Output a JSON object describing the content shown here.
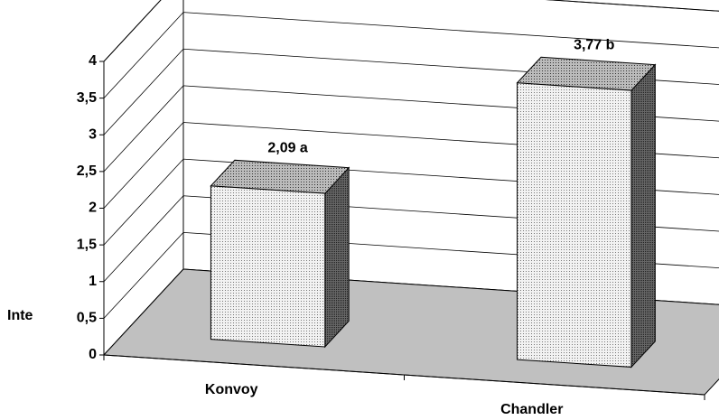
{
  "chart_data": {
    "type": "bar3d",
    "y_label": "Inte",
    "categories": [
      "Konvoy",
      "Chandler"
    ],
    "values": [
      2.09,
      3.77
    ],
    "value_labels": [
      "2,09 a",
      "3,77 b"
    ],
    "ylim": [
      0,
      4
    ],
    "yticks": [
      0,
      {
        "value": 0.5,
        "label": "0,5"
      },
      1,
      {
        "value": 1.5,
        "label": "1,5"
      },
      2,
      {
        "value": 2.5,
        "label": "2,5"
      },
      3,
      {
        "value": 3.5,
        "label": "3,5"
      },
      4
    ],
    "grid": true
  }
}
